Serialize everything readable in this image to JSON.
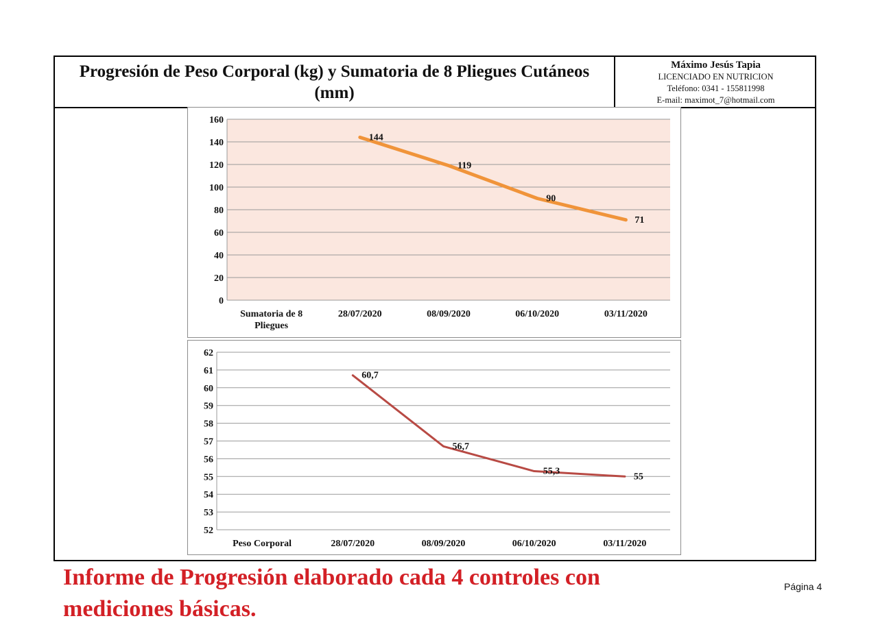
{
  "header": {
    "title": "Progresión de Peso Corporal (kg) y Sumatoria de 8 Pliegues Cutáneos (mm)",
    "contact": {
      "name": "Máximo Jesús Tapia",
      "profession": "LICENCIADO EN NUTRICION",
      "phone": "Teléfono: 0341 - 155811998",
      "email": "E-mail: maximot_7@hotmail.com"
    }
  },
  "chart_data": [
    {
      "type": "line",
      "title": "",
      "series_label": "Sumatoria de 8 Pliegues",
      "categories": [
        "28/07/2020",
        "08/09/2020",
        "06/10/2020",
        "03/11/2020"
      ],
      "values": [
        144,
        119,
        90,
        71
      ],
      "data_labels": [
        "144",
        "119",
        "90",
        "71"
      ],
      "ylim": [
        0,
        160
      ],
      "yticks": [
        0,
        20,
        40,
        60,
        80,
        100,
        120,
        140,
        160
      ],
      "grid": true,
      "plot_background": "#fbe7df",
      "line_color": "#f0943a"
    },
    {
      "type": "line",
      "title": "",
      "series_label": "Peso Corporal",
      "categories": [
        "28/07/2020",
        "08/09/2020",
        "06/10/2020",
        "03/11/2020"
      ],
      "values": [
        60.7,
        56.7,
        55.3,
        55
      ],
      "data_labels": [
        "60,7",
        "56,7",
        "55,3",
        "55"
      ],
      "ylim": [
        52,
        62
      ],
      "yticks": [
        52,
        53,
        54,
        55,
        56,
        57,
        58,
        59,
        60,
        61,
        62
      ],
      "grid": true,
      "plot_background": "#ffffff",
      "line_color": "#b84a44"
    }
  ],
  "footer": {
    "note": "Informe de Progresión elaborado cada 4 controles con mediciones básicas.",
    "page": "Página 4"
  }
}
